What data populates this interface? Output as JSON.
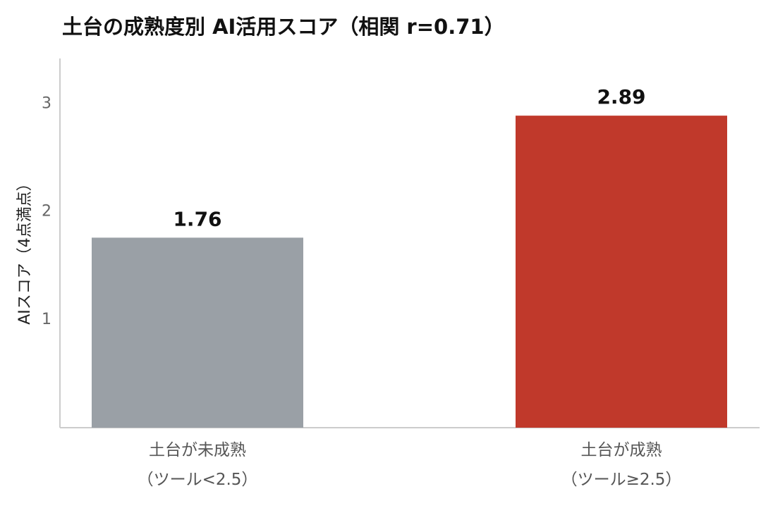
{
  "chart_data": {
    "type": "bar",
    "title": "土台の成熟度別 AI活用スコア（相関 r=0.71）",
    "y_label": "AIスコア（4点満点）",
    "categories": [
      "土台が未成熟\n（ツール<2.5）",
      "土台が成熟\n（ツール≥2.5）"
    ],
    "values": [
      1.76,
      2.89
    ],
    "colors": [
      "#9aa0a6",
      "#c0392b"
    ],
    "ylim": [
      0,
      3.4
    ],
    "yticks": [
      1,
      2,
      3
    ],
    "grid": false
  }
}
